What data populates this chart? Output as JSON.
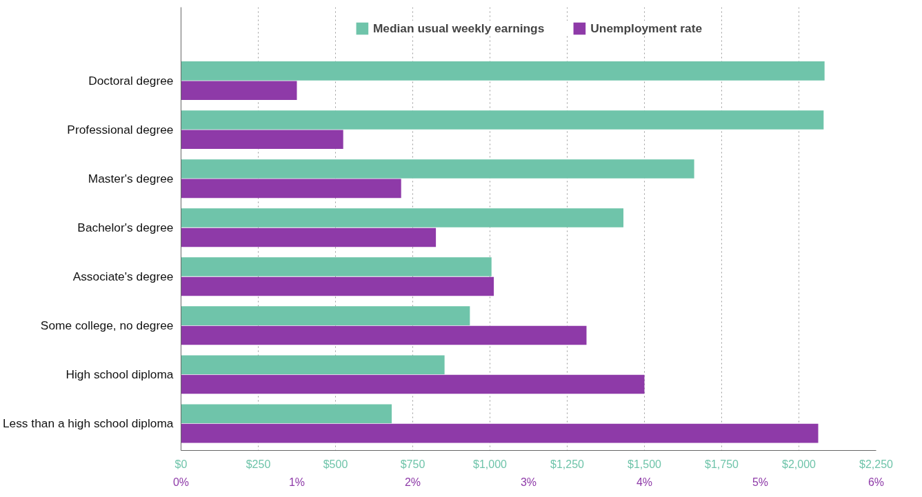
{
  "chart_data": {
    "type": "bar",
    "orientation": "horizontal",
    "categories": [
      "Doctoral degree",
      "Professional degree",
      "Master's degree",
      "Bachelor's degree",
      "Associate's degree",
      "Some college, no degree",
      "High school diploma",
      "Less than a high school diploma"
    ],
    "series": [
      {
        "name": "Median usual weekly earnings",
        "color": "#6fc4aa",
        "values": [
          2083,
          2080,
          1661,
          1432,
          1005,
          935,
          853,
          682
        ]
      },
      {
        "name": "Unemployment rate",
        "color": "#8e3aa8",
        "axis": "x2",
        "values": [
          1.0,
          1.4,
          1.9,
          2.2,
          2.7,
          3.5,
          4.0,
          5.5
        ]
      }
    ],
    "xlim": [
      0,
      2250
    ],
    "xticks": [
      {
        "value": 0,
        "label": "$0"
      },
      {
        "value": 250,
        "label": "$250"
      },
      {
        "value": 500,
        "label": "$500"
      },
      {
        "value": 750,
        "label": "$750"
      },
      {
        "value": 1000,
        "label": "$1,000"
      },
      {
        "value": 1250,
        "label": "$1,250"
      },
      {
        "value": 1500,
        "label": "$1,500"
      },
      {
        "value": 1750,
        "label": "$1,750"
      },
      {
        "value": 2000,
        "label": "$2,000"
      },
      {
        "value": 2250,
        "label": "$2,250"
      }
    ],
    "x2lim": [
      0,
      6
    ],
    "x2ticks": [
      {
        "value": 0,
        "label": "0%"
      },
      {
        "value": 1,
        "label": "1%"
      },
      {
        "value": 2,
        "label": "2%"
      },
      {
        "value": 3,
        "label": "3%"
      },
      {
        "value": 4,
        "label": "4%"
      },
      {
        "value": 5,
        "label": "5%"
      },
      {
        "value": 6,
        "label": "6%"
      }
    ],
    "grid": "x",
    "legend": "top"
  }
}
